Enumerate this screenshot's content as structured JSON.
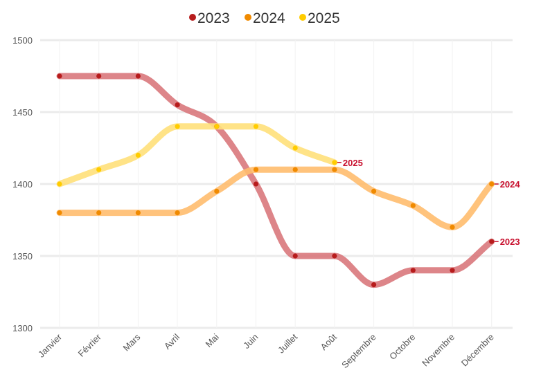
{
  "chart_data": {
    "type": "line",
    "categories": [
      "Janvier",
      "Février",
      "Mars",
      "Avril",
      "Mai",
      "Juin",
      "Juillet",
      "Août",
      "Septembre",
      "Octobre",
      "Novembre",
      "Décembre"
    ],
    "series": [
      {
        "name": "2023",
        "color": "#b71c1c",
        "line_color": "#d9787c",
        "values": [
          1475,
          1475,
          1475,
          1455,
          1440,
          1400,
          1350,
          1350,
          1330,
          1340,
          1340,
          1360
        ]
      },
      {
        "name": "2024",
        "color": "#f08a00",
        "line_color": "#ffbd6e",
        "values": [
          1380,
          1380,
          1380,
          1380,
          1395,
          1410,
          1410,
          1410,
          1395,
          1385,
          1370,
          1400
        ]
      },
      {
        "name": "2025",
        "color": "#ffcc00",
        "line_color": "#ffe07a",
        "values": [
          1400,
          1410,
          1420,
          1440,
          1440,
          1440,
          1425,
          1415,
          null,
          null,
          null,
          null
        ]
      }
    ],
    "ylim": [
      1300,
      1500
    ],
    "yticks": [
      1300,
      1350,
      1400,
      1450,
      1500
    ],
    "grid": true,
    "legend": "top-center",
    "end_labels": true
  }
}
